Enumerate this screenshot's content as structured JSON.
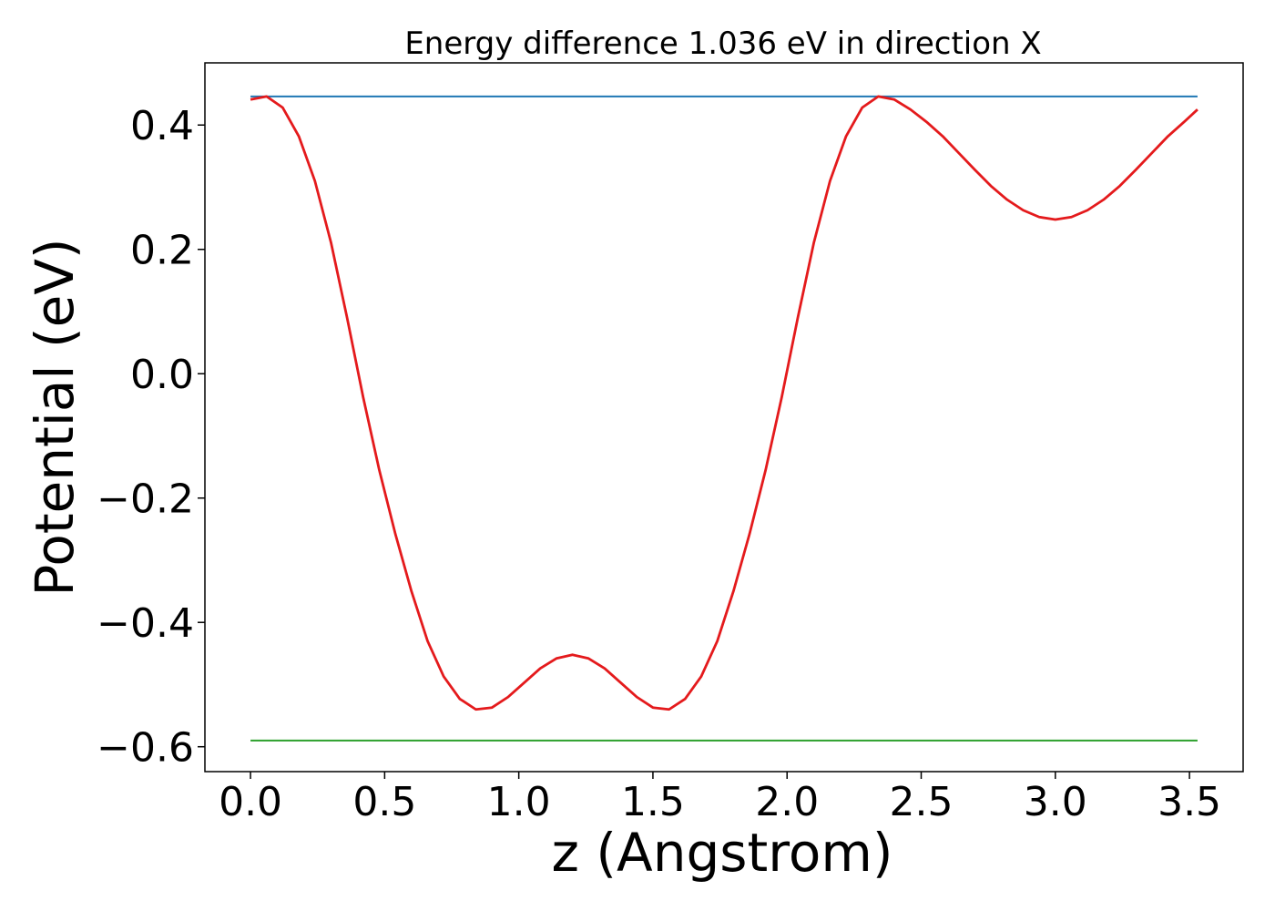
{
  "chart_data": {
    "type": "line",
    "title": "Energy difference 1.036 eV in direction X",
    "xlabel": "z (Angstrom)",
    "ylabel": "Potential (eV)",
    "xlim": [
      -0.17,
      3.7
    ],
    "ylim": [
      -0.64,
      0.5
    ],
    "x_ticks": [
      0.0,
      0.5,
      1.0,
      1.5,
      2.0,
      2.5,
      3.0,
      3.5
    ],
    "x_tick_labels": [
      "0.0",
      "0.5",
      "1.0",
      "1.5",
      "2.0",
      "2.5",
      "3.0",
      "3.5"
    ],
    "y_ticks": [
      -0.6,
      -0.4,
      -0.2,
      0.0,
      0.2,
      0.4
    ],
    "y_tick_labels": [
      "−0.6",
      "−0.4",
      "−0.2",
      "0.0",
      "0.2",
      "0.4"
    ],
    "grid": false,
    "series": [
      {
        "color": "#1f77b4",
        "x": [
          0.0,
          3.53
        ],
        "y": [
          0.446,
          0.446
        ]
      },
      {
        "color": "#2ca02c",
        "x": [
          0.0,
          3.53
        ],
        "y": [
          -0.59,
          -0.59
        ]
      },
      {
        "color": "#e41a1c",
        "x": [
          0.0,
          0.06,
          0.12,
          0.18,
          0.24,
          0.3,
          0.36,
          0.42,
          0.48,
          0.54,
          0.6,
          0.66,
          0.72,
          0.78,
          0.84,
          0.9,
          0.96,
          1.02,
          1.08,
          1.14,
          1.2,
          1.26,
          1.32,
          1.38,
          1.44,
          1.5,
          1.56,
          1.62,
          1.68,
          1.74,
          1.8,
          1.86,
          1.92,
          1.98,
          2.04,
          2.1,
          2.16,
          2.22,
          2.28,
          2.34,
          2.4,
          2.46,
          2.52,
          2.58,
          2.64,
          2.7,
          2.76,
          2.82,
          2.88,
          2.94,
          3.0,
          3.06,
          3.12,
          3.18,
          3.24,
          3.3,
          3.36,
          3.42,
          3.48,
          3.53
        ],
        "y": [
          0.441,
          0.446,
          0.428,
          0.382,
          0.31,
          0.211,
          0.09,
          -0.038,
          -0.155,
          -0.258,
          -0.35,
          -0.43,
          -0.487,
          -0.523,
          -0.54,
          -0.537,
          -0.52,
          -0.497,
          -0.474,
          -0.458,
          -0.452,
          -0.458,
          -0.474,
          -0.497,
          -0.52,
          -0.537,
          -0.54,
          -0.523,
          -0.487,
          -0.43,
          -0.35,
          -0.258,
          -0.155,
          -0.038,
          0.09,
          0.211,
          0.31,
          0.382,
          0.428,
          0.446,
          0.441,
          0.425,
          0.405,
          0.382,
          0.355,
          0.328,
          0.302,
          0.28,
          0.263,
          0.252,
          0.248,
          0.252,
          0.263,
          0.28,
          0.302,
          0.328,
          0.355,
          0.382,
          0.405,
          0.425
        ]
      }
    ]
  }
}
